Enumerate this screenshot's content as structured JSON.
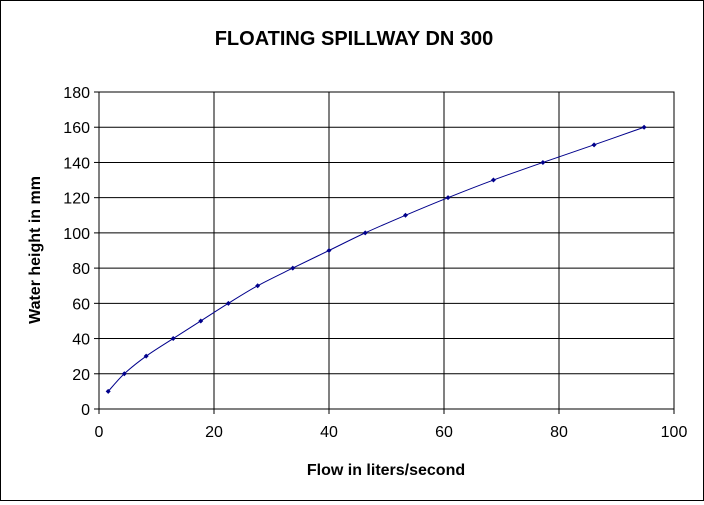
{
  "chart_data": {
    "type": "line",
    "title": "FLOATING SPILLWAY DN 300",
    "xlabel": "Flow in liters/second",
    "ylabel": "Water height in mm",
    "xlim": [
      0,
      100
    ],
    "ylim": [
      0,
      180
    ],
    "x_ticks": [
      0,
      20,
      40,
      60,
      80,
      100
    ],
    "y_ticks": [
      0,
      20,
      40,
      60,
      80,
      100,
      120,
      140,
      160,
      180
    ],
    "grid": true,
    "series": [
      {
        "color": "#00008b",
        "x": [
          1.6,
          4.4,
          8.2,
          12.9,
          17.7,
          22.5,
          27.6,
          33.7,
          40.0,
          46.3,
          53.3,
          60.7,
          68.6,
          77.2,
          86.1,
          94.8
        ],
        "y": [
          10,
          20,
          30,
          40,
          50,
          60,
          70,
          80,
          90,
          100,
          110,
          120,
          130,
          140,
          150,
          160
        ]
      }
    ]
  }
}
